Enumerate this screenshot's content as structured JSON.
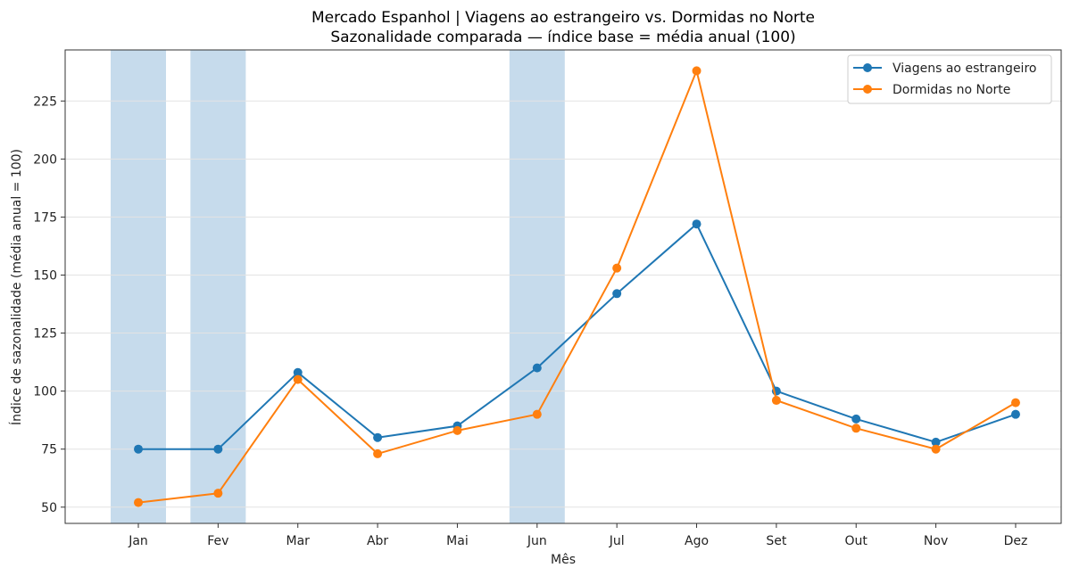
{
  "chart_data": {
    "type": "line",
    "title": "Mercado Espanhol | Viagens ao estrangeiro vs. Dormidas no Norte",
    "subtitle": "Sazonalidade comparada — índice base = média anual (100)",
    "xlabel": "Mês",
    "ylabel": "Índice de sazonalidade (média anual = 100)",
    "categories": [
      "Jan",
      "Fev",
      "Mar",
      "Abr",
      "Mai",
      "Jun",
      "Jul",
      "Ago",
      "Set",
      "Out",
      "Nov",
      "Dez"
    ],
    "ylim": [
      43,
      247
    ],
    "yticks": [
      50,
      75,
      100,
      125,
      150,
      175,
      200,
      225
    ],
    "grid": "horizontal",
    "legend_position": "top-right",
    "highlighted_months": [
      "Jan",
      "Fev",
      "Jun"
    ],
    "highlight_color": "#c6dbec",
    "series": [
      {
        "name": "Viagens ao estrangeiro",
        "color": "#1f77b4",
        "values": [
          75,
          75,
          108,
          80,
          85,
          110,
          142,
          172,
          100,
          88,
          78,
          90
        ]
      },
      {
        "name": "Dormidas no Norte",
        "color": "#ff7f0e",
        "values": [
          52,
          56,
          105,
          73,
          83,
          90,
          153,
          238,
          96,
          84,
          75,
          95
        ]
      }
    ]
  }
}
